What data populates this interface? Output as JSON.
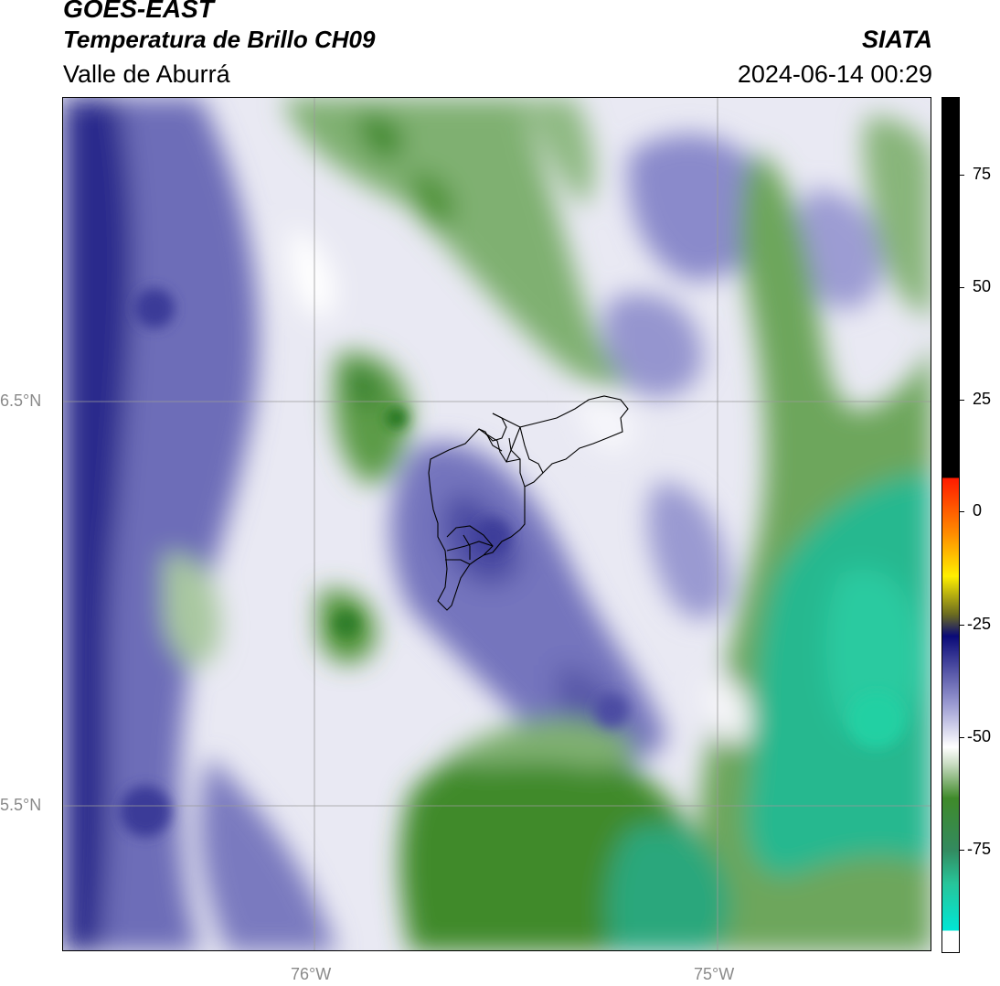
{
  "header": {
    "satellite": "GOES-EAST",
    "product": "Temperatura de Brillo CH09",
    "region": "Valle de Aburrá",
    "organization": "SIATA",
    "datetime": "2024-06-14 00:29"
  },
  "map": {
    "lat_labels": [
      "6.5°N",
      "5.5°N"
    ],
    "lon_labels": [
      "76°W",
      "75°W"
    ],
    "gridlines": true,
    "overlay": "municipal boundaries of Valle de Aburrá"
  },
  "colorbar": {
    "ticks": [
      "75",
      "50",
      "25",
      "0",
      "-25",
      "-50",
      "-75"
    ],
    "colors": {
      "black": "#000000",
      "red": "#ff1a00",
      "orange": "#ff8c00",
      "yellow": "#ffef00",
      "navy": "#0a0a78",
      "lavender": "#9b9bd2",
      "white": "#ffffff",
      "green": "#3f8a2a",
      "teal": "#27c59a",
      "cyan": "#00e6d6"
    }
  }
}
